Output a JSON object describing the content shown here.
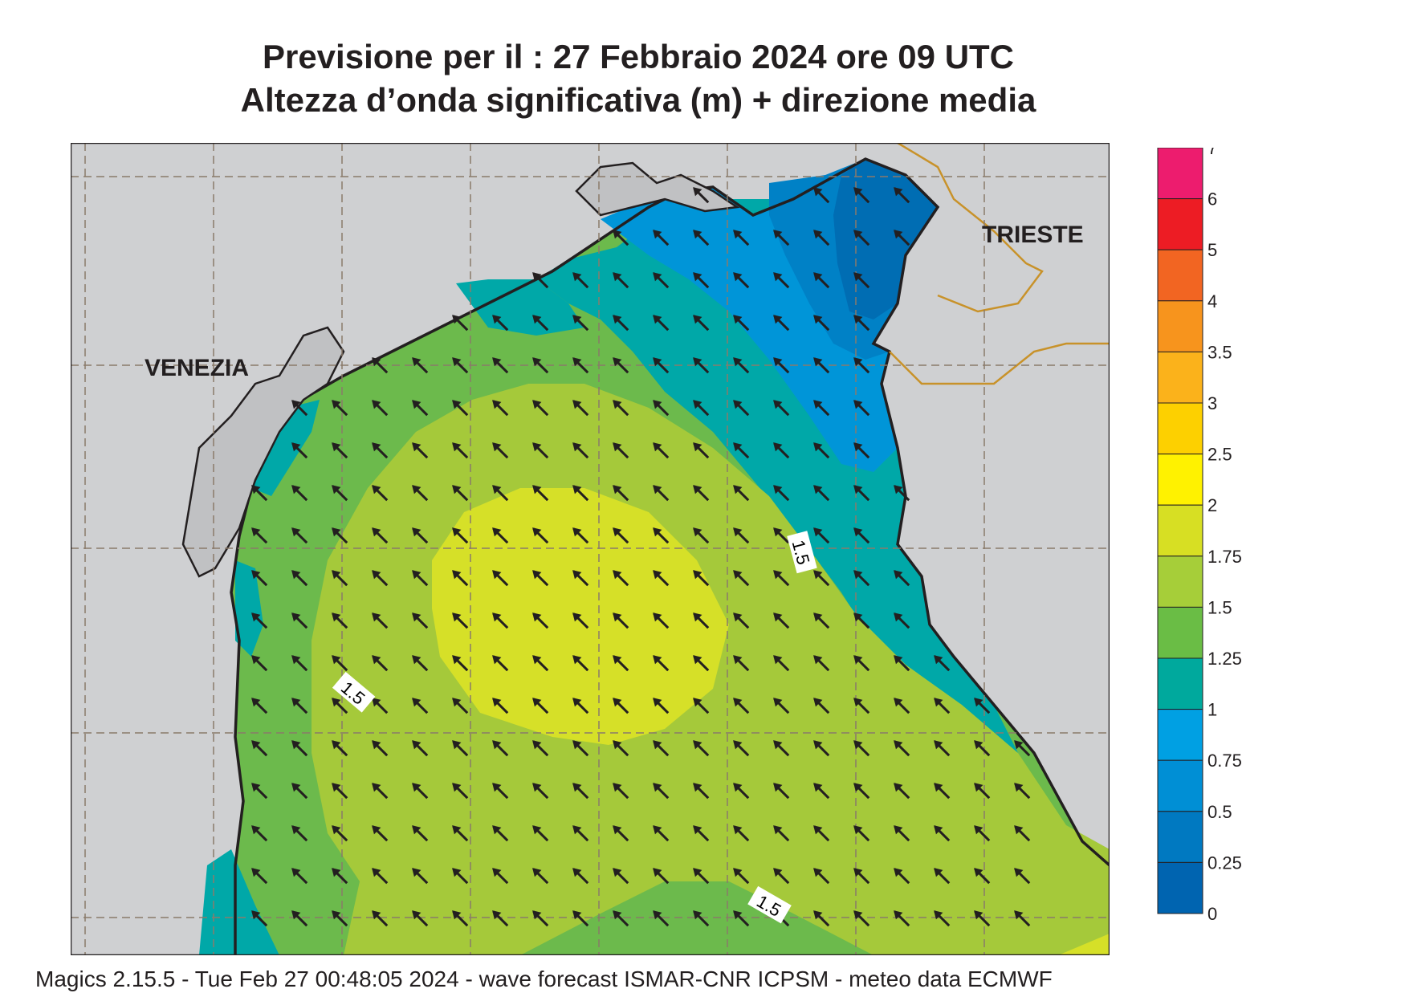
{
  "title": {
    "line1": "Previsione per il  :  27  Febbraio 2024   ore 09 UTC",
    "line2": "Altezza d’onda significativa (m) + direzione media"
  },
  "map": {
    "cities": [
      "VENEZIA",
      "TRIESTE"
    ],
    "contour_label": "1.5",
    "colors": {
      "land": "#cfd0d2",
      "sea_lt_0_75": "#0095d8",
      "sea_1": "#00a8a8",
      "sea_1_25": "#6cba4c",
      "sea_1_5": "#a5c93a",
      "sea_1_75": "#d6e028",
      "sea_0_5": "#0081c6",
      "sea_0_25": "#006db3",
      "coast": "#231f20",
      "border": "#c8922a",
      "arrow": "#231f20"
    },
    "arrow_direction": "north-west"
  },
  "legend": {
    "labels": [
      "7",
      "6",
      "5",
      "4",
      "3.5",
      "3",
      "2.5",
      "2",
      "1.75",
      "1.5",
      "1.25",
      "1",
      "0.75",
      "0.5",
      "0.25",
      "0"
    ],
    "colors": [
      "#ed1c6e",
      "#ed1c24",
      "#f26522",
      "#f7941d",
      "#fbb21b",
      "#fdd000",
      "#fff200",
      "#d7df23",
      "#a6ce39",
      "#6abd45",
      "#00a99d",
      "#00a0e3",
      "#008fd5",
      "#0079c1",
      "#0064b0"
    ]
  },
  "footer": "Magics 2.15.5 - Tue Feb 27 00:48:05 2024 - wave forecast  ISMAR-CNR  ICPSM - meteo data   ECMWF"
}
